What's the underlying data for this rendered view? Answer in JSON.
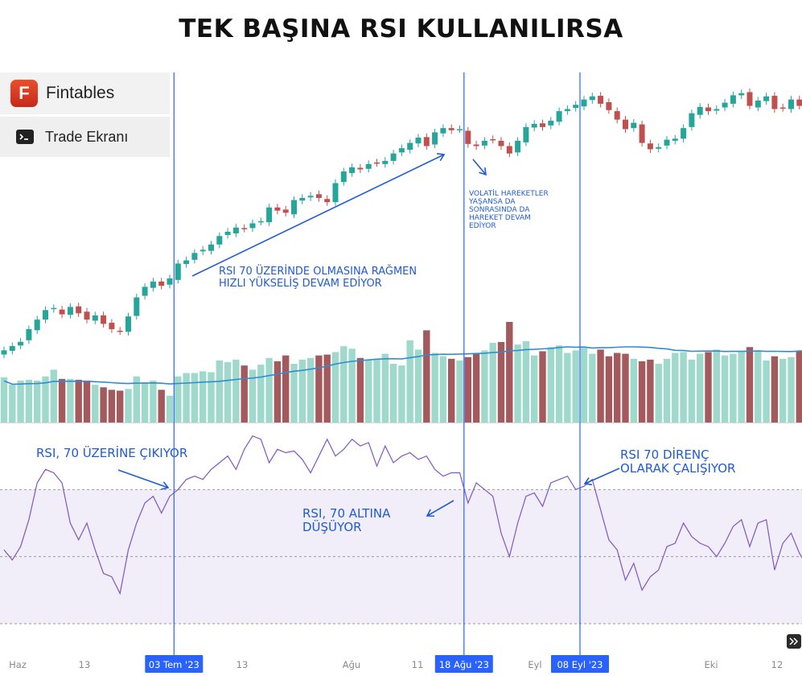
{
  "title": "TEK BAŞINA RSI KULLANILIRSA",
  "brand": {
    "name": "Fintables",
    "logo_letter": "F",
    "subtitle": "Trade Ekranı",
    "icon": "terminal-icon",
    "logo_color": "#e03c23"
  },
  "colors": {
    "up": "#26a69a",
    "down": "#c0504d",
    "vol_up": "#9fd9cc",
    "vol_down": "#a45a5c",
    "ma": "#2f8bd6",
    "vline": "#2962ff",
    "rsi_line": "#7e57c2",
    "rsi_band": "#f1edf9",
    "annotation": "#1f5bd6"
  },
  "chart_data": [
    {
      "type": "candlestick",
      "description_labels": [
        "Haz",
        "13",
        "03 Tem '23",
        "13",
        "Ağu",
        "11",
        "18 Ağu '23",
        "Eyl",
        "08 Eyl '23",
        "Eki",
        "12"
      ],
      "x_ticks": [
        "Haz",
        "13",
        "13",
        "Ağu",
        "11",
        "Eyl",
        "Eki",
        "12"
      ],
      "highlighted_dates": [
        "03 Tem '23",
        "18 Ağu '23",
        "08 Eyl '23"
      ],
      "highlighted_index": [
        21,
        56,
        70
      ],
      "close": [
        62.0,
        62.4,
        62.8,
        64.0,
        64.9,
        65.8,
        66.0,
        65.4,
        66.1,
        65.5,
        64.9,
        65.3,
        64.5,
        64.0,
        63.8,
        65.2,
        67.0,
        68.0,
        68.5,
        68.1,
        68.8,
        70.2,
        70.5,
        71.2,
        71.5,
        72.0,
        72.8,
        73.2,
        73.6,
        73.5,
        74.0,
        74.2,
        75.5,
        75.2,
        75.0,
        76.2,
        76.4,
        76.6,
        76.4,
        76.0,
        77.8,
        78.9,
        79.3,
        79.1,
        79.6,
        79.7,
        79.9,
        80.6,
        81.1,
        81.6,
        82.1,
        81.3,
        82.6,
        83.0,
        82.8,
        82.9,
        81.5,
        81.3,
        81.8,
        81.9,
        81.3,
        80.6,
        81.8,
        83.1,
        83.4,
        83.1,
        83.7,
        84.6,
        84.8,
        85.2,
        85.7,
        86.0,
        85.3,
        84.7,
        83.8,
        82.9,
        83.5,
        81.6,
        81.0,
        81.2,
        81.9,
        82.0,
        83.0,
        84.4,
        85.0,
        84.6,
        84.8,
        85.4,
        86.1,
        86.3,
        85.1,
        85.6,
        86.0,
        84.8,
        84.9,
        85.7,
        85.1,
        84.1,
        83.0,
        82.4
      ],
      "volume": [
        5.4,
        4.5,
        5.0,
        5.1,
        5.0,
        5.5,
        6.3,
        5.2,
        5.2,
        5.1,
        5.0,
        4.5,
        4.2,
        3.9,
        3.8,
        4.0,
        5.5,
        4.8,
        5.0,
        3.9,
        3.2,
        5.5,
        5.9,
        5.9,
        6.1,
        6.0,
        7.4,
        7.2,
        7.5,
        6.8,
        6.3,
        6.9,
        7.7,
        7.3,
        8.0,
        7.0,
        7.5,
        7.7,
        8.0,
        8.1,
        8.4,
        9.1,
        8.8,
        7.7,
        7.5,
        7.6,
        8.2,
        7.0,
        6.8,
        9.8,
        8.7,
        11.0,
        8.3,
        7.9,
        7.6,
        7.4,
        7.8,
        8.3,
        8.6,
        9.5,
        9.6,
        12.0,
        9.3,
        9.7,
        8.0,
        8.5,
        9.0,
        9.2,
        8.3,
        8.6,
        8.9,
        8.2,
        8.7,
        7.9,
        8.3,
        8.2,
        7.6,
        7.3,
        7.5,
        7.0,
        7.6,
        8.3,
        8.4,
        7.5,
        8.2,
        8.4,
        8.7,
        8.0,
        8.2,
        8.4,
        9.0,
        8.5,
        7.4,
        7.9,
        7.6,
        7.8,
        8.5,
        7.8,
        8.6,
        7.6
      ],
      "volume_ma_trend": "rising",
      "rsi": [
        52.0,
        49.0,
        53.0,
        61.0,
        72.0,
        76.0,
        75.0,
        72.0,
        60.0,
        55.0,
        60.0,
        52.0,
        45.0,
        44.0,
        39.0,
        52.0,
        60.0,
        66.0,
        68.0,
        63.0,
        68.0,
        70.0,
        73.0,
        74.0,
        73.0,
        76.0,
        78.0,
        80.0,
        76.0,
        82.0,
        86.0,
        85.0,
        78.0,
        82.0,
        81.0,
        81.5,
        79.0,
        75.0,
        80.0,
        85.0,
        80.0,
        82.0,
        85.0,
        83.0,
        84.0,
        77.0,
        83.0,
        78.0,
        80.0,
        81.0,
        79.0,
        80.0,
        76.0,
        74.0,
        75.0,
        75.0,
        66.0,
        72.0,
        70.0,
        68.0,
        57.0,
        50.0,
        60.0,
        68.0,
        69.0,
        65.0,
        72.0,
        73.0,
        74.0,
        70.0,
        71.0,
        73.0,
        64.0,
        55.0,
        52.0,
        43.0,
        48.0,
        40.0,
        44.0,
        46.0,
        53.0,
        54.0,
        60.0,
        56.0,
        54.0,
        53.0,
        50.0,
        54.0,
        59.0,
        61.0,
        53.0,
        60.0,
        61.0,
        46.0,
        54.0,
        57.0,
        51.0,
        47.0,
        39.0,
        44.0
      ],
      "rsi_levels": [
        70,
        50,
        30
      ],
      "rsi_range": [
        30,
        90
      ],
      "annotations": [
        {
          "text": "RSI 70 ÜZERİNDE OLMASINA RAĞMEN\nHIZLI YÜKSELİŞ DEVAM EDİYOR"
        },
        {
          "text": "VOLATİL HAREKETLER\nYAŞANSA DA\nSONRASINDA DA\nHAREKET DEVAM\nEDİYOR"
        },
        {
          "text": "RSI, 70 ÜZERİNE ÇIKIYOR"
        },
        {
          "text": "RSI, 70 ALTINA\nDÜŞÜYOR"
        },
        {
          "text": "RSI 70 DİRENÇ\nOLARAK ÇALIŞIYOR"
        }
      ]
    }
  ]
}
